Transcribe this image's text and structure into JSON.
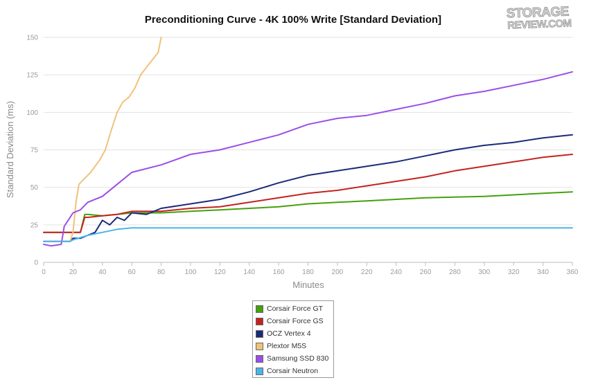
{
  "logo": {
    "top": "STORAGE",
    "bottom": "REVIEW.COM"
  },
  "colors": {
    "Corsair Force GT": "#43a10c",
    "Corsair Force GS": "#c3231f",
    "OCZ Vertex 4": "#1a2a78",
    "Plextor M5S": "#f0c27a",
    "Samsung SSD 830": "#9b4ee6",
    "Corsair Neutron": "#4ab4ea"
  },
  "chart_data": {
    "type": "line",
    "title": "Preconditioning Curve - 4K 100% Write [Standard Deviation]",
    "xlabel": "Minutes",
    "ylabel": "Standard Deviation (ms)",
    "xlim": [
      0,
      360
    ],
    "ylim": [
      0,
      150
    ],
    "x_ticks": [
      0,
      20,
      40,
      60,
      80,
      100,
      120,
      140,
      160,
      180,
      200,
      220,
      240,
      260,
      280,
      300,
      320,
      340,
      360
    ],
    "y_ticks": [
      0,
      25,
      50,
      75,
      100,
      125,
      150
    ],
    "grid": "horizontal",
    "legend_position": "bottom-center",
    "series": [
      {
        "name": "Corsair Force GT",
        "color": "#43a10c",
        "points": [
          [
            0,
            20
          ],
          [
            10,
            20
          ],
          [
            20,
            20
          ],
          [
            25,
            20
          ],
          [
            28,
            32
          ],
          [
            30,
            32
          ],
          [
            40,
            31
          ],
          [
            50,
            32
          ],
          [
            60,
            33
          ],
          [
            80,
            33
          ],
          [
            100,
            34
          ],
          [
            120,
            35
          ],
          [
            140,
            36
          ],
          [
            160,
            37
          ],
          [
            180,
            39
          ],
          [
            200,
            40
          ],
          [
            220,
            41
          ],
          [
            240,
            42
          ],
          [
            260,
            43
          ],
          [
            280,
            43.5
          ],
          [
            300,
            44
          ],
          [
            320,
            45
          ],
          [
            340,
            46
          ],
          [
            360,
            47
          ]
        ]
      },
      {
        "name": "Corsair Force GS",
        "color": "#c3231f",
        "points": [
          [
            0,
            20
          ],
          [
            10,
            20
          ],
          [
            20,
            20
          ],
          [
            25,
            20
          ],
          [
            28,
            30
          ],
          [
            30,
            30
          ],
          [
            40,
            31
          ],
          [
            50,
            32
          ],
          [
            60,
            34
          ],
          [
            80,
            34
          ],
          [
            100,
            36
          ],
          [
            120,
            37
          ],
          [
            140,
            40
          ],
          [
            160,
            43
          ],
          [
            180,
            46
          ],
          [
            200,
            48
          ],
          [
            220,
            51
          ],
          [
            240,
            54
          ],
          [
            260,
            57
          ],
          [
            280,
            61
          ],
          [
            300,
            64
          ],
          [
            320,
            67
          ],
          [
            340,
            70
          ],
          [
            360,
            72
          ]
        ]
      },
      {
        "name": "OCZ Vertex 4",
        "color": "#1a2a78",
        "points": [
          [
            0,
            14
          ],
          [
            10,
            14
          ],
          [
            18,
            14
          ],
          [
            20,
            16
          ],
          [
            25,
            16
          ],
          [
            30,
            18
          ],
          [
            35,
            20
          ],
          [
            40,
            28
          ],
          [
            45,
            25
          ],
          [
            50,
            30
          ],
          [
            55,
            28
          ],
          [
            60,
            33
          ],
          [
            70,
            32
          ],
          [
            80,
            36
          ],
          [
            100,
            39
          ],
          [
            120,
            42
          ],
          [
            140,
            47
          ],
          [
            160,
            53
          ],
          [
            180,
            58
          ],
          [
            200,
            61
          ],
          [
            220,
            64
          ],
          [
            240,
            67
          ],
          [
            260,
            71
          ],
          [
            280,
            75
          ],
          [
            300,
            78
          ],
          [
            320,
            80
          ],
          [
            340,
            83
          ],
          [
            360,
            85
          ]
        ]
      },
      {
        "name": "Plextor M5S",
        "color": "#f0c27a",
        "points": [
          [
            0,
            14
          ],
          [
            10,
            14
          ],
          [
            18,
            14
          ],
          [
            20,
            20
          ],
          [
            22,
            40
          ],
          [
            24,
            52
          ],
          [
            28,
            56
          ],
          [
            32,
            60
          ],
          [
            38,
            68
          ],
          [
            42,
            75
          ],
          [
            46,
            88
          ],
          [
            50,
            100
          ],
          [
            54,
            107
          ],
          [
            58,
            110
          ],
          [
            62,
            116
          ],
          [
            66,
            125
          ],
          [
            70,
            130
          ],
          [
            74,
            135
          ],
          [
            78,
            140
          ],
          [
            80,
            150
          ]
        ]
      },
      {
        "name": "Samsung SSD 830",
        "color": "#9b4ee6",
        "points": [
          [
            0,
            12
          ],
          [
            5,
            11
          ],
          [
            12,
            12
          ],
          [
            14,
            24
          ],
          [
            20,
            33
          ],
          [
            25,
            35
          ],
          [
            30,
            40
          ],
          [
            40,
            44
          ],
          [
            50,
            52
          ],
          [
            60,
            60
          ],
          [
            80,
            65
          ],
          [
            100,
            72
          ],
          [
            120,
            75
          ],
          [
            140,
            80
          ],
          [
            160,
            85
          ],
          [
            180,
            92
          ],
          [
            200,
            96
          ],
          [
            220,
            98
          ],
          [
            240,
            102
          ],
          [
            260,
            106
          ],
          [
            280,
            111
          ],
          [
            300,
            114
          ],
          [
            320,
            118
          ],
          [
            340,
            122
          ],
          [
            360,
            127
          ]
        ]
      },
      {
        "name": "Corsair Neutron",
        "color": "#4ab4ea",
        "points": [
          [
            0,
            14
          ],
          [
            10,
            14
          ],
          [
            18,
            14
          ],
          [
            20,
            15
          ],
          [
            30,
            18
          ],
          [
            40,
            20
          ],
          [
            50,
            22
          ],
          [
            60,
            23
          ],
          [
            80,
            23
          ],
          [
            100,
            23
          ],
          [
            140,
            23
          ],
          [
            180,
            23
          ],
          [
            220,
            23
          ],
          [
            260,
            23
          ],
          [
            300,
            23
          ],
          [
            320,
            23
          ],
          [
            340,
            23
          ],
          [
            360,
            23
          ]
        ]
      }
    ]
  }
}
